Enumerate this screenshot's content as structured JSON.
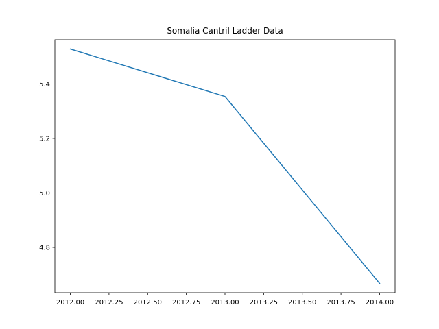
{
  "chart_data": {
    "type": "line",
    "title": "Somalia Cantril Ladder Data",
    "xlabel": "",
    "ylabel": "",
    "x": [
      2012.0,
      2013.0,
      2014.0
    ],
    "series": [
      {
        "values": [
          5.528,
          5.354,
          4.668
        ],
        "color": "#1f77b4"
      }
    ],
    "xlim": [
      2011.9,
      2014.1
    ],
    "ylim": [
      4.634,
      5.562
    ],
    "xticks": [
      2012.0,
      2012.25,
      2012.5,
      2012.75,
      2013.0,
      2013.25,
      2013.5,
      2013.75,
      2014.0
    ],
    "xtick_labels": [
      "2012.00",
      "2012.25",
      "2012.50",
      "2012.75",
      "2013.00",
      "2013.25",
      "2013.50",
      "2013.75",
      "2014.00"
    ],
    "yticks": [
      4.8,
      5.0,
      5.2,
      5.4
    ],
    "ytick_labels": [
      "4.8",
      "5.0",
      "5.2",
      "5.4"
    ],
    "grid": false,
    "legend": false
  }
}
